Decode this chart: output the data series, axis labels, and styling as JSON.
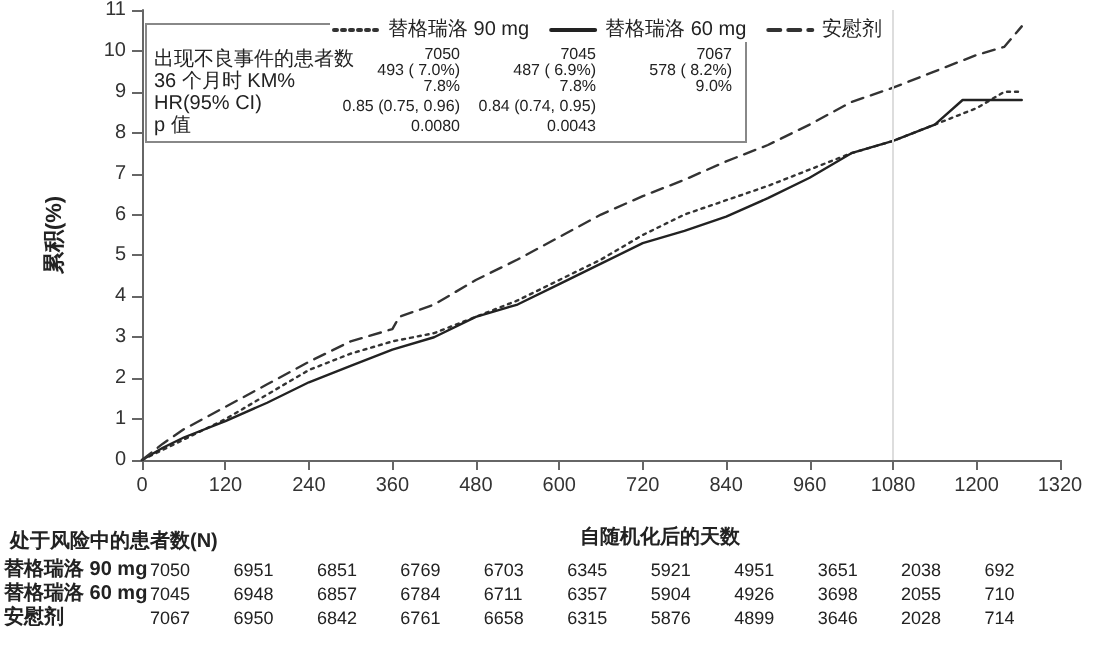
{
  "chart_data": {
    "type": "line",
    "xlabel": "自随机化后的天数",
    "ylabel": "累积(%)",
    "xlim": [
      0,
      1320
    ],
    "xticks": [
      0,
      120,
      240,
      360,
      480,
      600,
      720,
      840,
      960,
      1080,
      1200,
      1320
    ],
    "ylim": [
      0,
      11
    ],
    "yticks": [
      0,
      1,
      2,
      3,
      4,
      5,
      6,
      7,
      8,
      9,
      10,
      11
    ],
    "grid": false,
    "legend": "top",
    "marker": "none",
    "series": [
      {
        "name": "替格瑞洛 90 mg",
        "color": "#333333",
        "line_style": "dotted",
        "x": [
          0,
          30,
          60,
          120,
          180,
          240,
          300,
          360,
          420,
          480,
          540,
          600,
          660,
          720,
          780,
          840,
          900,
          960,
          1020,
          1080,
          1140,
          1200,
          1240,
          1265
        ],
        "values": [
          0,
          0.25,
          0.5,
          1.0,
          1.6,
          2.2,
          2.6,
          2.9,
          3.1,
          3.5,
          3.9,
          4.4,
          4.9,
          5.5,
          6.0,
          6.35,
          6.7,
          7.1,
          7.5,
          7.8,
          8.2,
          8.6,
          9.0,
          9.0
        ]
      },
      {
        "name": "替格瑞洛 60 mg",
        "color": "#222222",
        "line_style": "solid",
        "x": [
          0,
          30,
          60,
          120,
          180,
          240,
          300,
          360,
          420,
          480,
          540,
          600,
          660,
          720,
          780,
          840,
          900,
          960,
          1020,
          1080,
          1140,
          1180,
          1200,
          1240,
          1265
        ],
        "values": [
          0,
          0.3,
          0.55,
          0.95,
          1.4,
          1.9,
          2.3,
          2.7,
          3.0,
          3.5,
          3.8,
          4.3,
          4.8,
          5.3,
          5.6,
          5.95,
          6.4,
          6.9,
          7.5,
          7.8,
          8.2,
          8.8,
          8.8,
          8.8,
          8.8
        ]
      },
      {
        "name": "安慰剂",
        "color": "#333333",
        "line_style": "dashed",
        "x": [
          0,
          30,
          60,
          120,
          180,
          240,
          300,
          360,
          370,
          420,
          480,
          540,
          600,
          660,
          720,
          780,
          840,
          900,
          960,
          1020,
          1080,
          1140,
          1200,
          1240,
          1255,
          1265
        ],
        "values": [
          0,
          0.4,
          0.75,
          1.3,
          1.85,
          2.4,
          2.9,
          3.2,
          3.5,
          3.8,
          4.4,
          4.9,
          5.45,
          6.0,
          6.45,
          6.85,
          7.3,
          7.7,
          8.2,
          8.75,
          9.1,
          9.5,
          9.9,
          10.1,
          10.4,
          10.6
        ]
      }
    ],
    "ref_lines": [
      {
        "axis": "x",
        "value": 1080,
        "color": "#dddddd"
      }
    ],
    "annotations": [
      "出现不良事件的患者数",
      "36 个月时 KM%",
      "HR(95% CI)",
      "p 值",
      "7050",
      "493 ( 7.0%)",
      "7.8%",
      "0.85 (0.75, 0.96)",
      "0.0080",
      "7045",
      "487 ( 6.9%)",
      "7.8%",
      "0.84 (0.74, 0.95)",
      "0.0043",
      "7067",
      "578 ( 8.2%)",
      "9.0%",
      "处于风险中的患者数(N)",
      "7050",
      "6951",
      "6851",
      "6769",
      "6703",
      "6345",
      "5921",
      "4951",
      "3651",
      "2038",
      "692",
      "7045",
      "6948",
      "6857",
      "6784",
      "6711",
      "6357",
      "5904",
      "4926",
      "3698",
      "2055",
      "710",
      "7067",
      "6950",
      "6842",
      "6761",
      "6658",
      "6315",
      "5876",
      "4899",
      "3646",
      "2028",
      "714"
    ]
  }
}
